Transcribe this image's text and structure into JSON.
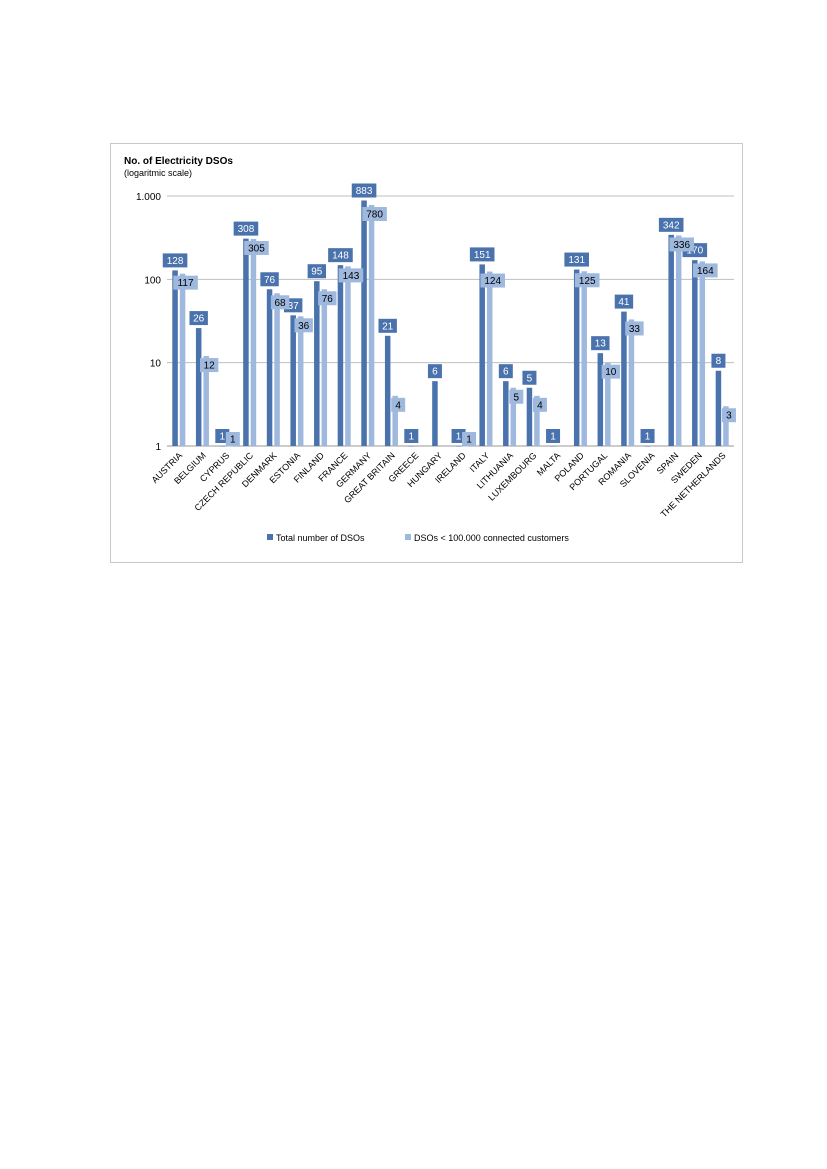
{
  "chart_data": {
    "type": "bar",
    "title": "No. of  Electricity DSOs",
    "subtitle": "(logaritmic scale)",
    "yscale": "log",
    "ylim": [
      1,
      1000
    ],
    "yticks": [
      1,
      10,
      100,
      1000
    ],
    "ytick_labels": [
      "1",
      "10",
      "100",
      "1.000"
    ],
    "grid": true,
    "legend_position": "bottom",
    "categories": [
      "AUSTRIA",
      "BELGIUM",
      "CYPRUS",
      "CZECH REPUBLIC",
      "DENMARK",
      "ESTONIA",
      "FINLAND",
      "FRANCE",
      "GERMANY",
      "GREAT BRITAIN",
      "GREECE",
      "HUNGARY",
      "IRELAND",
      "ITALY",
      "LITHUANIA",
      "LUXEMBOURG",
      "MALTA",
      "POLAND",
      "PORTUGAL",
      "ROMANIA",
      "SLOVENIA",
      "SPAIN",
      "SWEDEN",
      "THE NETHERLANDS"
    ],
    "series": [
      {
        "name": "Total number of DSOs",
        "color": "#4a72ad",
        "label_text_color": "#ffffff",
        "values": [
          128,
          26,
          1,
          308,
          76,
          37,
          95,
          148,
          883,
          21,
          1,
          6,
          1,
          151,
          6,
          5,
          1,
          131,
          13,
          41,
          1,
          342,
          170,
          8
        ]
      },
      {
        "name": "DSOs < 100.000 connected customers",
        "color": "#9fb8dd",
        "label_text_color": "#000000",
        "values": [
          117,
          12,
          1,
          305,
          68,
          36,
          76,
          143,
          780,
          4,
          null,
          null,
          1,
          124,
          5,
          4,
          null,
          125,
          10,
          33,
          null,
          336,
          164,
          3
        ]
      }
    ]
  }
}
